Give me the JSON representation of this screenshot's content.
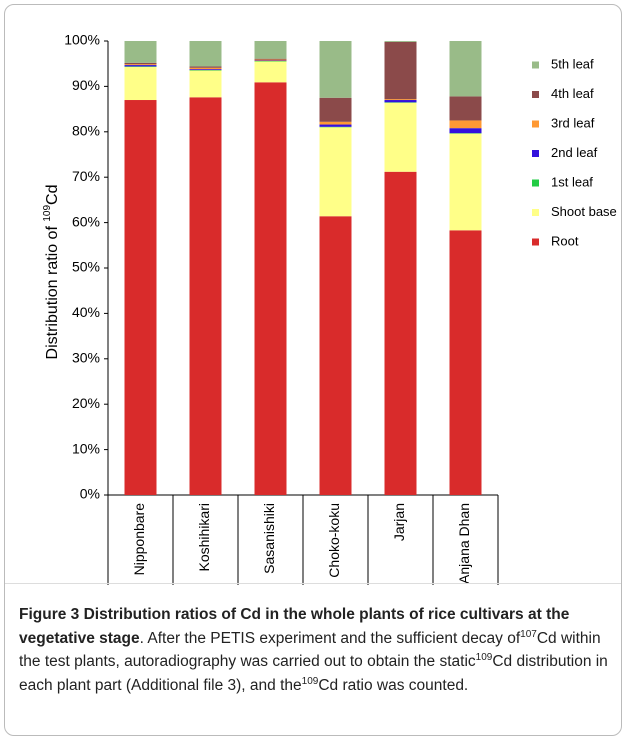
{
  "chart_data": {
    "type": "stacked_bar",
    "ylabel_parts": [
      "Distribution ratio of ",
      "109",
      "Cd"
    ],
    "categories": [
      "Nipponbare",
      "Koshihikari",
      "Sasanishiki",
      "Choko-koku",
      "Jarjan",
      "Anjana Dhan"
    ],
    "series": [
      {
        "name": "Root",
        "color": "#d92b2b",
        "values": [
          87,
          87.6,
          90.9,
          61.4,
          71.2,
          58.3
        ]
      },
      {
        "name": "Shoot base",
        "color": "#ffff88",
        "values": [
          7.3,
          5.9,
          4.6,
          19.6,
          15.2,
          21.3
        ]
      },
      {
        "name": "1st leaf",
        "color": "#22cc44",
        "values": [
          0.1,
          0.1,
          0.1,
          0.1,
          0.1,
          0.1
        ]
      },
      {
        "name": "2nd leaf",
        "color": "#3311dd",
        "values": [
          0.3,
          0.2,
          0.1,
          0.5,
          0.5,
          1.1
        ]
      },
      {
        "name": "3rd leaf",
        "color": "#ff9933",
        "values": [
          0.2,
          0.3,
          0.2,
          0.6,
          0.2,
          1.7
        ]
      },
      {
        "name": "4th leaf",
        "color": "#8b4a4a",
        "values": [
          0.3,
          0.3,
          0.2,
          5.3,
          12.6,
          5.3
        ]
      },
      {
        "name": "5th leaf",
        "color": "#99bb88",
        "values": [
          4.8,
          5.6,
          3.9,
          12.5,
          0.2,
          12.2
        ]
      }
    ],
    "ylim": [
      0,
      100
    ],
    "yticks": [
      {
        "value": 0,
        "label": "0%"
      },
      {
        "value": 10,
        "label": "10%"
      },
      {
        "value": 20,
        "label": "20%"
      },
      {
        "value": 30,
        "label": "30%"
      },
      {
        "value": 40,
        "label": "40%"
      },
      {
        "value": 50,
        "label": "50%"
      },
      {
        "value": 60,
        "label": "60%"
      },
      {
        "value": 70,
        "label": "70%"
      },
      {
        "value": 80,
        "label": "80%"
      },
      {
        "value": 90,
        "label": "90%"
      },
      {
        "value": 100,
        "label": "100%"
      }
    ]
  },
  "caption": {
    "title": "Figure 3 Distribution ratios of Cd in the whole plants of rice cultivars at the vegetative stage",
    "parts": [
      ". After the PETIS experiment and the sufficient decay of",
      "107",
      "Cd within the test plants, autoradiography was carried out to obtain the static",
      "109",
      "Cd distribution in each plant part (Additional file 3), and the",
      "109",
      "Cd ratio was counted."
    ]
  }
}
